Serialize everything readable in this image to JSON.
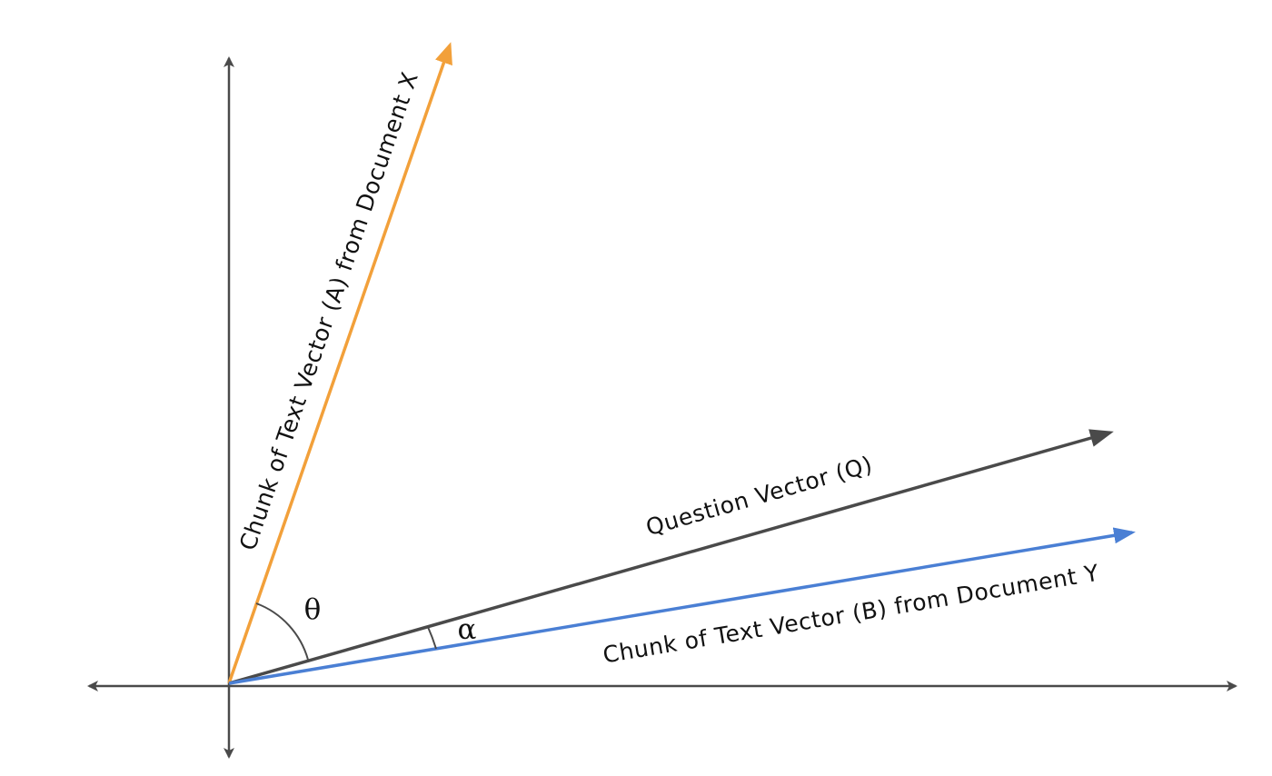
{
  "diagram": {
    "colors": {
      "axis": "#4a4a4a",
      "vector_a": "#f2a03a",
      "vector_b": "#4a7fd4",
      "vector_q": "#4a4a4a",
      "text": "#111111",
      "background": "#ffffff"
    },
    "vectors": {
      "a": {
        "label": "Chunk of Text Vector (A)  from Document X"
      },
      "q": {
        "label": "Question Vector (Q)"
      },
      "b": {
        "label": "Chunk of Text Vector (B)  from Document Y"
      }
    },
    "angles": {
      "theta": {
        "symbol": "θ"
      },
      "alpha": {
        "symbol": "α"
      }
    }
  }
}
